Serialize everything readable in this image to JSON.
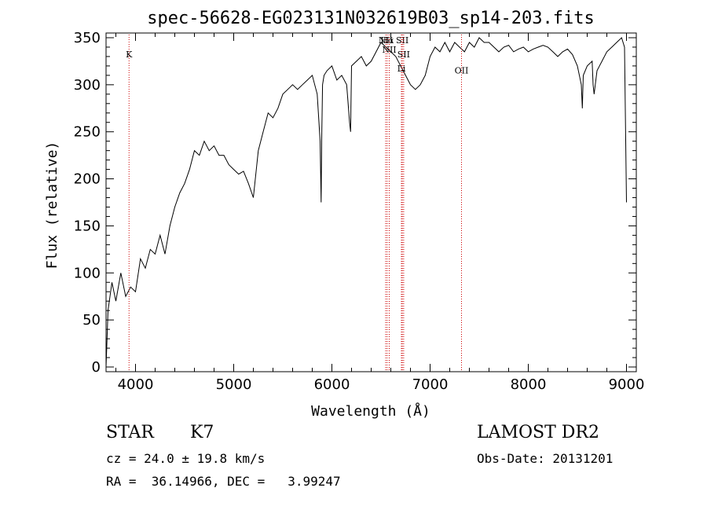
{
  "chart_data": {
    "type": "line",
    "title": "spec-56628-EG023131N032619B03_sp14-203.fits",
    "xlabel": "Wavelength (Å)",
    "ylabel": "Flux (relative)",
    "xlim": [
      3700,
      9100
    ],
    "ylim": [
      -5,
      355
    ],
    "xticks": [
      4000,
      5000,
      6000,
      7000,
      8000,
      9000
    ],
    "yticks": [
      0,
      50,
      100,
      150,
      200,
      250,
      300,
      350
    ],
    "series": [
      {
        "x": [
          3700,
          3720,
          3760,
          3800,
          3850,
          3900,
          3950,
          4000,
          4050,
          4100,
          4150,
          4200,
          4250,
          4300,
          4350,
          4400,
          4450,
          4500,
          4550,
          4600,
          4650,
          4700,
          4750,
          4800,
          4850,
          4900,
          4950,
          5000,
          5050,
          5100,
          5150,
          5200,
          5250,
          5300,
          5350,
          5400,
          5450,
          5500,
          5550,
          5600,
          5650,
          5700,
          5750,
          5800,
          5850,
          5880,
          5890,
          5896,
          5905,
          5920,
          5950,
          6000,
          6050,
          6100,
          6150,
          6180,
          6190,
          6200,
          6250,
          6300,
          6350,
          6400,
          6450,
          6500,
          6550,
          6600,
          6650,
          6700,
          6750,
          6800,
          6850,
          6900,
          6950,
          7000,
          7050,
          7100,
          7150,
          7200,
          7250,
          7300,
          7350,
          7400,
          7450,
          7500,
          7550,
          7600,
          7650,
          7700,
          7750,
          7800,
          7850,
          7900,
          7950,
          8000,
          8050,
          8100,
          8150,
          8200,
          8250,
          8300,
          8350,
          8400,
          8450,
          8500,
          8540,
          8550,
          8560,
          8600,
          8650,
          8660,
          8670,
          8700,
          8750,
          8800,
          8850,
          8900,
          8950,
          8980,
          9000
        ],
        "y": [
          0,
          60,
          90,
          70,
          100,
          75,
          85,
          80,
          115,
          105,
          125,
          120,
          140,
          120,
          150,
          170,
          185,
          195,
          210,
          230,
          225,
          240,
          230,
          235,
          225,
          225,
          215,
          210,
          205,
          208,
          195,
          180,
          230,
          250,
          270,
          265,
          275,
          290,
          295,
          300,
          295,
          300,
          305,
          310,
          290,
          240,
          175,
          240,
          300,
          310,
          315,
          320,
          305,
          310,
          300,
          260,
          250,
          320,
          325,
          330,
          320,
          325,
          335,
          345,
          340,
          335,
          330,
          320,
          310,
          300,
          295,
          300,
          310,
          330,
          340,
          335,
          345,
          335,
          345,
          340,
          335,
          345,
          340,
          350,
          345,
          345,
          340,
          335,
          340,
          342,
          335,
          338,
          340,
          335,
          338,
          340,
          342,
          340,
          335,
          330,
          335,
          338,
          332,
          320,
          300,
          275,
          310,
          320,
          325,
          300,
          290,
          315,
          325,
          335,
          340,
          345,
          350,
          340,
          175
        ]
      }
    ],
    "line_markers": [
      {
        "label": "K",
        "x": 3934,
        "label_y": 329
      },
      {
        "label": "NII",
        "x": 6548,
        "label_y": 344
      },
      {
        "label": "Hα",
        "x": 6563,
        "label_y": 344
      },
      {
        "label": "SII",
        "x": 6717,
        "label_y": 344
      },
      {
        "label": "NII",
        "x": 6584,
        "label_y": 334
      },
      {
        "label": "SII",
        "x": 6731,
        "label_y": 329
      },
      {
        "label": "Li",
        "x": 6708,
        "label_y": 314
      },
      {
        "label": "OII",
        "x": 7320,
        "label_y": 312
      }
    ],
    "marker_color": "#cc0000",
    "grid": false
  },
  "info": {
    "class_label": "STAR",
    "subclass_label": "K7",
    "cz_text": "cz = 24.0 ± 19.8 km/s",
    "coords_text": "RA =  36.14966, DEC =   3.99247",
    "survey_text": "LAMOST DR2",
    "obs_date_text": "Obs-Date: 20131201"
  }
}
